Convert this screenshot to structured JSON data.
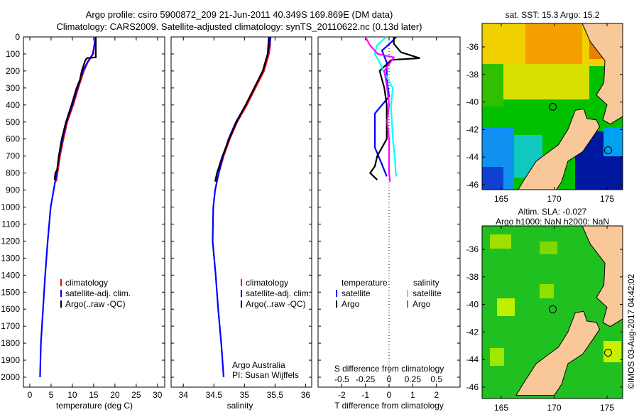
{
  "title": {
    "line1": "Argo profile: csiro 5900872_209 21-Jun-2011 40.349S 169.869E (DM data)",
    "line2": "Climatology: CARS2009. Satellite-adjusted climatology: synTS_20110622.nc (0.13d later)"
  },
  "credit": "©IMOS 03-Aug-2017 04:42:02",
  "colors": {
    "climatology": "#ff0000",
    "satellite": "#0000ff",
    "argo": "#000000",
    "sal_satellite": "#00ffff",
    "sal_argo": "#ff00ff"
  },
  "chart_data": [
    {
      "type": "line",
      "name": "temperature",
      "xlabel": "temperature (deg C)",
      "ylabel": "depth",
      "xlim": [
        -1.5,
        31.7
      ],
      "ylim": [
        2058,
        0
      ],
      "xticks": [
        "0",
        "5",
        "10",
        "15",
        "20",
        "25",
        "30"
      ],
      "yticks": [
        "0",
        "100",
        "200",
        "300",
        "400",
        "500",
        "600",
        "700",
        "800",
        "900",
        "1000",
        "1100",
        "1200",
        "1300",
        "1400",
        "1500",
        "1600",
        "1700",
        "1800",
        "1900",
        "2000"
      ],
      "legend": [
        "climatology",
        "satellite-adj. clim.",
        "Argo(..raw -QC)"
      ],
      "series": [
        {
          "name": "climatology",
          "color": "#ff0000",
          "depth": [
            0,
            100,
            150,
            200,
            300,
            400,
            500,
            600,
            700,
            800,
            850
          ],
          "values": [
            15.4,
            14.9,
            13.6,
            12.7,
            11.4,
            10.2,
            8.8,
            7.9,
            7.1,
            6.5,
            6.2
          ]
        },
        {
          "name": "satellite-adj. clim.",
          "color": "#0000ff",
          "depth": [
            0,
            100,
            150,
            200,
            300,
            400,
            500,
            600,
            700,
            800,
            900,
            1000,
            1200,
            1400,
            1600,
            1800,
            2000
          ],
          "values": [
            15.5,
            14.8,
            13.5,
            12.5,
            11.2,
            10.0,
            8.6,
            7.7,
            6.9,
            6.3,
            5.6,
            4.9,
            4.2,
            3.6,
            3.1,
            2.6,
            2.4
          ]
        },
        {
          "name": "Argo(..raw -QC)",
          "color": "#000000",
          "depth": [
            0,
            60,
            120,
            125,
            140,
            200,
            250,
            300,
            400,
            500,
            600,
            700,
            780,
            800,
            840
          ],
          "values": [
            15.5,
            15.5,
            15.5,
            13.4,
            13.0,
            12.2,
            11.8,
            11.0,
            9.8,
            8.5,
            7.5,
            6.8,
            6.4,
            6.0,
            5.8
          ]
        }
      ]
    },
    {
      "type": "line",
      "name": "salinity",
      "xlabel": "salinity",
      "xlim": [
        33.8,
        36.1
      ],
      "ylim": [
        2058,
        0
      ],
      "xticks": [
        "34",
        "34.5",
        "35",
        "35.5",
        "36"
      ],
      "legend": [
        "climatology",
        "satellite-adj. clim.",
        "Argo(..raw -QC)"
      ],
      "annotation": [
        "Argo Australia",
        "PI: Susan Wijffels"
      ],
      "series": [
        {
          "name": "climatology",
          "color": "#ff0000",
          "depth": [
            0,
            50,
            100,
            200,
            300,
            400,
            500,
            600,
            700,
            800,
            850
          ],
          "values": [
            35.42,
            35.42,
            35.4,
            35.32,
            35.18,
            35.04,
            34.88,
            34.76,
            34.66,
            34.58,
            34.54
          ]
        },
        {
          "name": "satellite-adj. clim.",
          "color": "#0000ff",
          "depth": [
            0,
            50,
            100,
            200,
            300,
            400,
            500,
            600,
            700,
            800,
            900,
            1000,
            1200,
            1400,
            1600,
            1800,
            2000
          ],
          "values": [
            35.43,
            35.41,
            35.38,
            35.3,
            35.16,
            35.02,
            34.86,
            34.74,
            34.65,
            34.58,
            34.52,
            34.49,
            34.48,
            34.53,
            34.57,
            34.62,
            34.66
          ]
        },
        {
          "name": "Argo(..raw -QC)",
          "color": "#000000",
          "depth": [
            0,
            100,
            200,
            300,
            400,
            500,
            600,
            700,
            800,
            850
          ],
          "values": [
            35.4,
            35.38,
            35.3,
            35.16,
            35.02,
            34.87,
            34.75,
            34.64,
            34.55,
            34.52
          ]
        }
      ]
    },
    {
      "type": "line",
      "name": "difference",
      "xlabel": "T difference from climatology",
      "x2label": "S difference from climatology",
      "xlim": [
        -3,
        3
      ],
      "ylim": [
        2058,
        0
      ],
      "xticks": [
        "-2",
        "-1",
        "0",
        "1",
        "2"
      ],
      "x2ticks": [
        "-0.5",
        "-0.25",
        "0",
        "0.25",
        "0.5"
      ],
      "legend": {
        "temperature_heading": "temperature",
        "salinity_heading": "salinity",
        "t_satellite": "satellite",
        "t_argo": "Argo",
        "s_satellite": "satellite",
        "s_argo": "Argo"
      },
      "series": [
        {
          "name": "T satellite",
          "color": "#0000ff",
          "depth": [
            0,
            30,
            80,
            150,
            250,
            350,
            450,
            550,
            650,
            750,
            820
          ],
          "values": [
            0.3,
            0.1,
            -0.3,
            -0.1,
            -0.1,
            0.0,
            -0.6,
            -0.6,
            -0.6,
            -0.3,
            -0.1
          ]
        },
        {
          "name": "T Argo",
          "color": "#000000",
          "depth": [
            0,
            40,
            90,
            125,
            135,
            200,
            300,
            400,
            500,
            600,
            700,
            760,
            800,
            840
          ],
          "values": [
            0.2,
            0.2,
            0.5,
            1.3,
            0.1,
            -0.4,
            -0.2,
            -0.1,
            -0.1,
            -0.1,
            -0.5,
            -0.6,
            -0.8,
            -0.5
          ]
        },
        {
          "name": "S satellite",
          "color": "#00ffff",
          "depth": [
            0,
            50,
            100,
            150,
            200,
            300,
            400,
            500,
            600,
            700,
            800,
            820
          ],
          "values": [
            -0.03,
            -0.13,
            -0.15,
            -0.1,
            -0.06,
            0.04,
            0.02,
            0.03,
            0.04,
            0.06,
            0.07,
            0.08
          ]
        },
        {
          "name": "S Argo",
          "color": "#ff00ff",
          "depth": [
            0,
            50,
            100,
            120,
            200,
            300,
            400,
            500,
            600,
            700,
            800,
            850
          ],
          "values": [
            -0.25,
            -0.2,
            -0.12,
            0.05,
            -0.05,
            -0.02,
            0.0,
            -0.02,
            0.0,
            0.0,
            0.0,
            0.01
          ]
        }
      ]
    }
  ],
  "maps": [
    {
      "title": "sat. SST: 15.3 Argo: 15.2",
      "lon_ticks": [
        "165",
        "170",
        "175"
      ],
      "lat_ticks": [
        "-36",
        "-38",
        "-40",
        "-42",
        "-44",
        "-46"
      ],
      "profile_lon": 169.869,
      "profile_lat": -40.349
    },
    {
      "title1": "Altim. SLA: -0.027",
      "title2": "Argo h1000: NaN h2000: NaN",
      "lon_ticks": [
        "165",
        "170",
        "175"
      ],
      "lat_ticks": [
        "-36",
        "-38",
        "-40",
        "-42",
        "-44",
        "-46"
      ],
      "profile_lon": 169.869,
      "profile_lat": -40.349
    }
  ]
}
